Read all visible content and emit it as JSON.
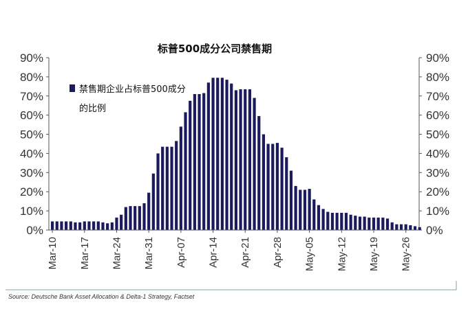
{
  "chart_data": {
    "type": "bar",
    "title": "标普500成分公司禁售期",
    "legend": {
      "label_line1": "禁售期企业占标普500成分",
      "label_line2": "的比例",
      "color": "#1c1a5e"
    },
    "source": "Source: Deutsche Bank Asset Allocation & Delta-1 Strategy, Factset",
    "yticks": [
      "0%",
      "10%",
      "20%",
      "30%",
      "40%",
      "50%",
      "60%",
      "70%",
      "80%",
      "90%"
    ],
    "ylim": [
      0,
      90
    ],
    "x_labels": [
      "Mar-10",
      "Mar-17",
      "Mar-24",
      "Mar-31",
      "Apr-07",
      "Apr-14",
      "Apr-21",
      "Apr-28",
      "May-05",
      "May-12",
      "May-19",
      "May-26"
    ],
    "label_every": 7,
    "bar_color": "#1c1a5e",
    "series": [
      {
        "values": [
          4.5,
          4.5,
          4.5,
          4.5,
          4.5,
          4.0,
          4.0,
          4.5,
          4.5,
          4.5,
          4.5,
          4.0,
          3.5,
          4.0,
          6.5,
          8.0,
          12.0,
          12.5,
          12.5,
          12.5,
          14.0,
          19.5,
          29.5,
          40.0,
          43.5,
          43.5,
          43.5,
          46.5,
          54.0,
          61.5,
          67.5,
          71.0,
          71.0,
          71.5,
          77.0,
          79.5,
          79.5,
          79.5,
          78.5,
          76.5,
          73.0,
          73.5,
          73.5,
          73.5,
          69.0,
          59.5,
          50.0,
          45.0,
          45.0,
          45.5,
          43.0,
          38.0,
          31.0,
          23.0,
          21.0,
          21.0,
          21.5,
          16.0,
          13.0,
          11.0,
          9.5,
          9.0,
          9.0,
          9.0,
          9.0,
          8.0,
          7.5,
          7.0,
          7.0,
          6.5,
          6.5,
          6.5,
          6.5,
          6.0,
          4.0,
          3.0,
          3.0,
          3.0,
          2.5,
          2.0,
          1.5
        ]
      }
    ]
  }
}
